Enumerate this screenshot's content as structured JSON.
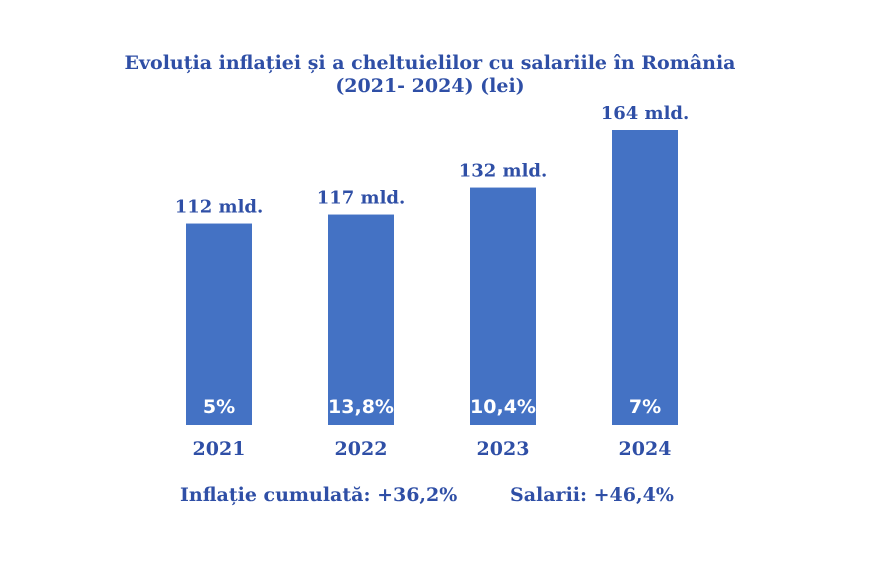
{
  "chart_data": {
    "type": "bar",
    "title": "Evoluția inflației și a cheltuielilor cu salariile în România",
    "subtitle": "(2021- 2024) (lei)",
    "categories": [
      "2021",
      "2022",
      "2023",
      "2024"
    ],
    "values": [
      112,
      117,
      132,
      164
    ],
    "value_labels": [
      "112 mld.",
      "117 mld.",
      "132 mld.",
      "164 mld."
    ],
    "inflation_labels": [
      "5%",
      "13,8%",
      "10,4%",
      "7%"
    ],
    "bar_color": "#4472c4",
    "text_color": "#2f4fa6",
    "ylim": [
      0,
      164
    ],
    "grid": false,
    "annotations": {
      "inflation_total": "Inflație cumulată: +36,2%",
      "salaries_total": "Salarii: +46,4%"
    }
  }
}
